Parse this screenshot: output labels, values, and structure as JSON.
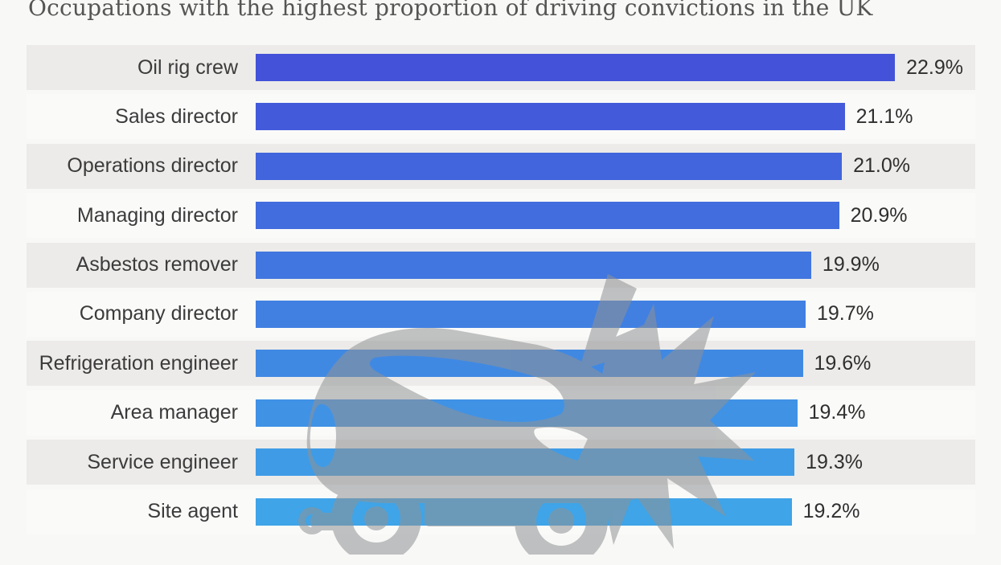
{
  "title": "Occupations with the highest proportion of driving convictions in the UK",
  "chart_data": {
    "type": "bar",
    "orientation": "horizontal",
    "title": "Occupations with the highest proportion of driving convictions in the UK",
    "xlabel": "",
    "ylabel": "",
    "grid": false,
    "legend": false,
    "axis_visible": false,
    "xlim": [
      0,
      25.8
    ],
    "categories": [
      "Oil rig crew",
      "Sales director",
      "Operations director",
      "Managing director",
      "Asbestos remover",
      "Company director",
      "Refrigeration engineer",
      "Area manager",
      "Service engineer",
      "Site agent"
    ],
    "values": [
      22.9,
      21.1,
      21.0,
      20.9,
      19.9,
      19.7,
      19.6,
      19.4,
      19.3,
      19.2
    ],
    "display_values": [
      "22.9%",
      "21.1%",
      "21.0%",
      "20.9%",
      "19.9%",
      "19.7%",
      "19.6%",
      "19.4%",
      "19.3%",
      "19.2%"
    ],
    "bar_colors": [
      "#4352D9",
      "#435BDB",
      "#4264DC",
      "#426DDE",
      "#4176E0",
      "#4180E1",
      "#4089E3",
      "#4092E5",
      "#3F9BE6",
      "#3FA4E8"
    ],
    "row_background_alt": "#ecebe9",
    "row_background": "#fafaf9",
    "page_background": "#f8f8f6",
    "watermark": "crashed-car-watermark",
    "watermark_color": "#909294"
  }
}
